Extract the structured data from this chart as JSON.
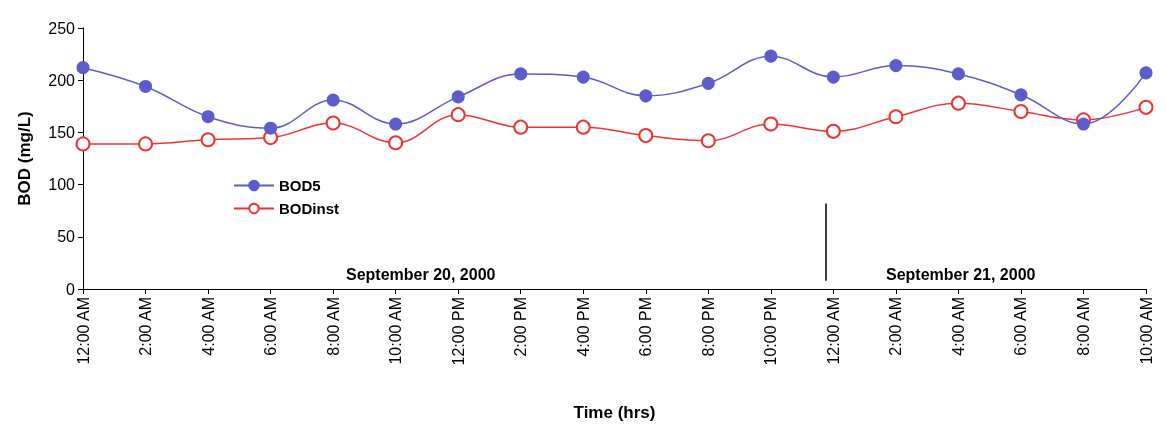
{
  "chart_data": {
    "type": "line",
    "xlabel": "Time (hrs)",
    "ylabel": "BOD (mg/L)",
    "x": [
      "2000-09-20T00:00",
      "2000-09-20T02:00",
      "2000-09-20T04:00",
      "2000-09-20T06:00",
      "2000-09-20T08:00",
      "2000-09-20T10:00",
      "2000-09-20T12:00",
      "2000-09-20T14:00",
      "2000-09-20T16:00",
      "2000-09-20T18:00",
      "2000-09-20T20:00",
      "2000-09-20T22:00",
      "2000-09-21T00:00",
      "2000-09-21T02:00",
      "2000-09-21T04:00",
      "2000-09-21T06:00",
      "2000-09-21T08:00",
      "2000-09-21T10:00"
    ],
    "xlim": [
      "2000-09-20T00:00",
      "2000-09-21T10:00"
    ],
    "xticks": [
      {
        "value": "2000-09-20T00:00",
        "label": "12:00 AM"
      },
      {
        "value": "2000-09-20T02:00",
        "label": "2:00 AM"
      },
      {
        "value": "2000-09-20T04:00",
        "label": "4:00 AM"
      },
      {
        "value": "2000-09-20T06:00",
        "label": "6:00 AM"
      },
      {
        "value": "2000-09-20T08:00",
        "label": "8:00 AM"
      },
      {
        "value": "2000-09-20T10:00",
        "label": "10:00 AM"
      },
      {
        "value": "2000-09-20T12:00",
        "label": "12:00 PM"
      },
      {
        "value": "2000-09-20T14:00",
        "label": "2:00 PM"
      },
      {
        "value": "2000-09-20T16:00",
        "label": "4:00 PM"
      },
      {
        "value": "2000-09-20T18:00",
        "label": "6:00 PM"
      },
      {
        "value": "2000-09-20T20:00",
        "label": "8:00 PM"
      },
      {
        "value": "2000-09-20T22:00",
        "label": "10:00 PM"
      },
      {
        "value": "2000-09-21T00:00",
        "label": "12:00 AM"
      },
      {
        "value": "2000-09-21T02:00",
        "label": "2:00 AM"
      },
      {
        "value": "2000-09-21T04:00",
        "label": "4:00 AM"
      },
      {
        "value": "2000-09-21T06:00",
        "label": "6:00 AM"
      },
      {
        "value": "2000-09-21T08:00",
        "label": "8:00 AM"
      },
      {
        "value": "2000-09-21T10:00",
        "label": "10:00 AM"
      }
    ],
    "ylim": [
      0,
      250
    ],
    "yticks": [
      0,
      50,
      100,
      150,
      200,
      250
    ],
    "series": [
      {
        "name": "BOD5",
        "color": "#5c5ccc",
        "marker": "circle",
        "values": [
          212,
          194,
          165,
          154,
          181,
          158,
          184,
          206,
          203,
          185,
          197,
          223,
          203,
          214,
          206,
          186,
          158,
          207
        ]
      },
      {
        "name": "BODinst",
        "color": "#ee3333",
        "marker": "circle",
        "values": [
          139,
          139,
          143,
          145,
          159,
          140,
          167,
          155,
          155,
          147,
          142,
          158,
          151,
          165,
          178,
          170,
          162,
          174
        ]
      }
    ],
    "ref_lines": [
      {
        "axis": "x",
        "value": "2000-09-20T23:45",
        "color": "#000000"
      }
    ],
    "annotations": [
      "September 20, 2000",
      "September 21, 2000"
    ],
    "legend": "left",
    "grid": false
  }
}
